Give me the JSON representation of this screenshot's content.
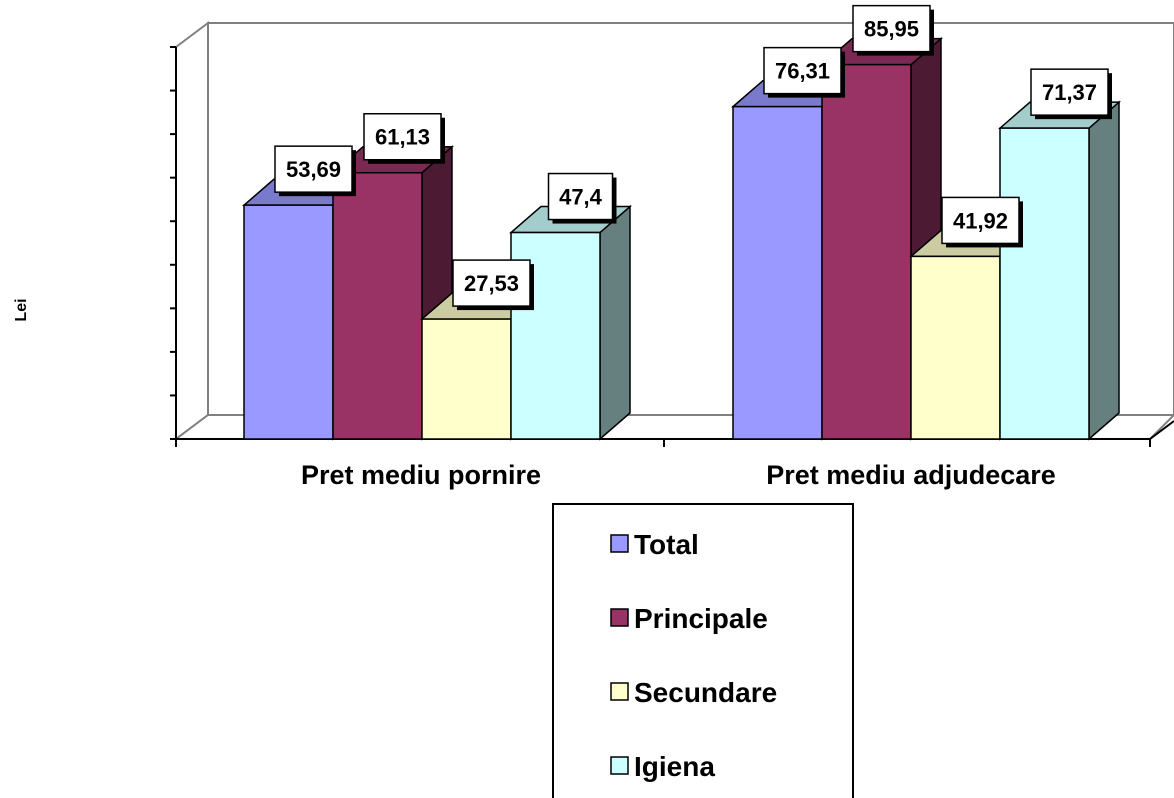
{
  "chart_data": {
    "type": "bar",
    "style": "3d-clustered-column",
    "categories": [
      "Pret mediu pornire",
      "Pret mediu adjudecare"
    ],
    "series": [
      {
        "name": "Total",
        "values": [
          53.69,
          76.31
        ],
        "labels": [
          "53,69",
          "76,31"
        ],
        "color": "#9999ff"
      },
      {
        "name": "Principale",
        "values": [
          61.13,
          85.95
        ],
        "labels": [
          "61,13",
          "85,95"
        ],
        "color": "#993366"
      },
      {
        "name": "Secundare",
        "values": [
          27.53,
          41.92
        ],
        "labels": [
          "27,53",
          "41,92"
        ],
        "color": "#ffffcc"
      },
      {
        "name": "Igiena",
        "values": [
          47.4,
          71.37
        ],
        "labels": [
          "47,4",
          "71,37"
        ],
        "color": "#ccffff"
      }
    ],
    "ylabel": "Lei",
    "ylim": [
      0,
      90
    ],
    "y_tick_labels_shown": false,
    "legend_position": "bottom"
  }
}
